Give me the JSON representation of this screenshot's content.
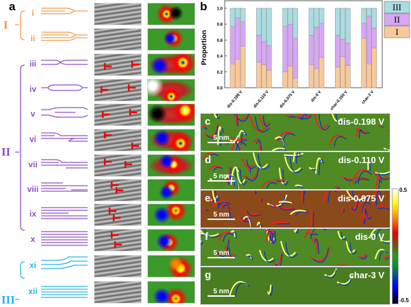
{
  "panel_a": {
    "label": "a",
    "groups": [
      {
        "label": "I",
        "color": "#f39a4c"
      },
      {
        "label": "II",
        "color": "#8e4fc6"
      },
      {
        "label": "III",
        "color": "#2bb3e6"
      }
    ],
    "rows": [
      "i",
      "ii",
      "iii",
      "iv",
      "v",
      "vi",
      "vii",
      "viii",
      "ix",
      "x",
      "xi",
      "xii"
    ]
  },
  "panel_b": {
    "label": "b"
  },
  "chart_data": {
    "type": "bar",
    "stacked": true,
    "ylabel": "Proportion",
    "ylim": [
      0,
      1.0
    ],
    "yticks": [
      "0.0",
      "0.2",
      "0.4",
      "0.6",
      "0.8",
      "1.0"
    ],
    "categories": [
      "dis-0.198 V",
      "dis-0.110 V",
      "dis-0.075 V",
      "dis-0 V",
      "char-0.150 V",
      "char-3 V"
    ],
    "bars_per_category": 3,
    "series": [
      {
        "name": "I",
        "color": "#f9c99a",
        "values": [
          [
            0.3,
            0.36,
            0.52
          ],
          [
            0.32,
            0.29,
            0.22
          ],
          [
            0.2,
            0.27,
            0.12
          ],
          [
            0.29,
            0.24,
            0.38
          ],
          [
            0.26,
            0.39,
            0.28
          ],
          [
            0.62,
            0.3,
            0.5
          ]
        ]
      },
      {
        "name": "II",
        "color": "#d7a6f5",
        "values": [
          [
            0.47,
            0.52,
            0.31
          ],
          [
            0.34,
            0.29,
            0.31
          ],
          [
            0.57,
            0.53,
            0.5
          ],
          [
            0.37,
            0.52,
            0.43
          ],
          [
            0.4,
            0.22,
            0.28
          ],
          [
            0.19,
            0.6,
            0.25
          ]
        ]
      },
      {
        "name": "III",
        "color": "#a9dde3",
        "values": [
          [
            0.23,
            0.12,
            0.17
          ],
          [
            0.34,
            0.42,
            0.47
          ],
          [
            0.23,
            0.2,
            0.38
          ],
          [
            0.34,
            0.24,
            0.19
          ],
          [
            0.34,
            0.39,
            0.44
          ],
          [
            0.19,
            0.1,
            0.25
          ]
        ]
      }
    ],
    "legend": "right"
  },
  "maps": [
    {
      "letter": "c",
      "label": "dis-0.198 V",
      "scale": "5 nm"
    },
    {
      "letter": "d",
      "label": "dis-0.110 V",
      "scale": "5 nm"
    },
    {
      "letter": "e",
      "label": "dis-0.075 V",
      "scale": "5 nm"
    },
    {
      "letter": "f",
      "label": "dis-0 V",
      "scale": "5 nm"
    },
    {
      "letter": "g",
      "label": "char-3 V",
      "scale": "5 nm"
    }
  ],
  "colorbar": {
    "max": "0.5",
    "min": "-0.5"
  }
}
